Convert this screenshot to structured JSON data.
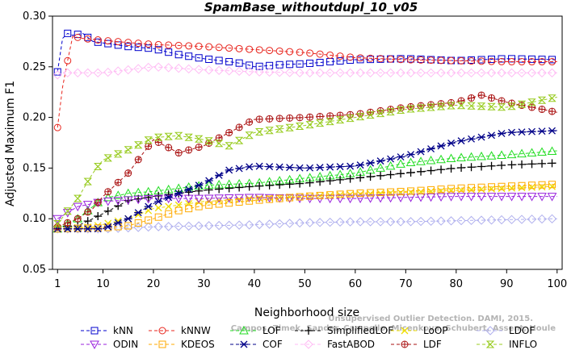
{
  "chart_data": {
    "type": "line",
    "title": "SpamBase_withoutdupl_10_v05",
    "xlabel": "Neighborhood size",
    "ylabel": "Adjusted Maximum F1",
    "xlim": [
      0,
      101
    ],
    "ylim": [
      0.05,
      0.3
    ],
    "x_ticks": [
      1,
      10,
      20,
      30,
      40,
      50,
      60,
      70,
      80,
      90,
      100
    ],
    "y_ticks": [
      "0.05",
      "0.10",
      "0.15",
      "0.20",
      "0.25",
      "0.30"
    ],
    "grid": false,
    "legend_position": "bottom",
    "credit": "Campos, Zimek, Sander, Campello, Micenkova, Schubert, Assent, Houle",
    "credit_line2": "Unsupervised Outlier Detection. DAMI, 2015.",
    "series": [
      {
        "name": "kNN",
        "color": "#0000cc",
        "marker": "square",
        "keypoints": [
          [
            1,
            0.245
          ],
          [
            2,
            0.278
          ],
          [
            3,
            0.283
          ],
          [
            4,
            0.281
          ],
          [
            6,
            0.283
          ],
          [
            8,
            0.275
          ],
          [
            15,
            0.27
          ],
          [
            20,
            0.268
          ],
          [
            25,
            0.262
          ],
          [
            30,
            0.258
          ],
          [
            35,
            0.255
          ],
          [
            38,
            0.253
          ],
          [
            40,
            0.25
          ],
          [
            45,
            0.252
          ],
          [
            50,
            0.253
          ],
          [
            55,
            0.255
          ],
          [
            60,
            0.257
          ],
          [
            70,
            0.258
          ],
          [
            80,
            0.256
          ],
          [
            90,
            0.258
          ],
          [
            100,
            0.257
          ]
        ]
      },
      {
        "name": "kNNW",
        "color": "#e8241c",
        "marker": "circle",
        "keypoints": [
          [
            1,
            0.19
          ],
          [
            2,
            0.23
          ],
          [
            3,
            0.256
          ],
          [
            4,
            0.28
          ],
          [
            6,
            0.278
          ],
          [
            10,
            0.276
          ],
          [
            20,
            0.272
          ],
          [
            30,
            0.27
          ],
          [
            40,
            0.267
          ],
          [
            50,
            0.264
          ],
          [
            60,
            0.259
          ],
          [
            70,
            0.257
          ],
          [
            80,
            0.256
          ],
          [
            90,
            0.255
          ],
          [
            100,
            0.255
          ]
        ]
      },
      {
        "name": "LOF",
        "color": "#22dd22",
        "marker": "triangle-up",
        "keypoints": [
          [
            1,
            0.09
          ],
          [
            5,
            0.1
          ],
          [
            10,
            0.12
          ],
          [
            15,
            0.125
          ],
          [
            20,
            0.127
          ],
          [
            30,
            0.133
          ],
          [
            40,
            0.135
          ],
          [
            50,
            0.14
          ],
          [
            60,
            0.145
          ],
          [
            70,
            0.155
          ],
          [
            80,
            0.16
          ],
          [
            90,
            0.163
          ],
          [
            100,
            0.167
          ]
        ]
      },
      {
        "name": "SimplifiedLOF",
        "color": "#000000",
        "marker": "plus",
        "keypoints": [
          [
            1,
            0.092
          ],
          [
            5,
            0.093
          ],
          [
            8,
            0.1
          ],
          [
            12,
            0.11
          ],
          [
            15,
            0.118
          ],
          [
            20,
            0.122
          ],
          [
            30,
            0.128
          ],
          [
            40,
            0.132
          ],
          [
            50,
            0.135
          ],
          [
            60,
            0.14
          ],
          [
            70,
            0.145
          ],
          [
            80,
            0.15
          ],
          [
            90,
            0.153
          ],
          [
            100,
            0.155
          ]
        ]
      },
      {
        "name": "LoOP",
        "color": "#eedd00",
        "marker": "cross",
        "keypoints": [
          [
            1,
            0.09
          ],
          [
            8,
            0.092
          ],
          [
            15,
            0.1
          ],
          [
            20,
            0.11
          ],
          [
            30,
            0.117
          ],
          [
            40,
            0.12
          ],
          [
            50,
            0.122
          ],
          [
            60,
            0.124
          ],
          [
            70,
            0.126
          ],
          [
            80,
            0.128
          ],
          [
            90,
            0.13
          ],
          [
            100,
            0.132
          ]
        ]
      },
      {
        "name": "LDOF",
        "color": "#b0b0ee",
        "marker": "diamond",
        "keypoints": [
          [
            1,
            0.09
          ],
          [
            10,
            0.09
          ],
          [
            20,
            0.092
          ],
          [
            30,
            0.093
          ],
          [
            40,
            0.094
          ],
          [
            50,
            0.096
          ],
          [
            60,
            0.097
          ],
          [
            70,
            0.097
          ],
          [
            80,
            0.098
          ],
          [
            90,
            0.099
          ],
          [
            100,
            0.1
          ]
        ]
      },
      {
        "name": "ODIN",
        "color": "#9922dd",
        "marker": "triangle-down",
        "keypoints": [
          [
            1,
            0.1
          ],
          [
            5,
            0.112
          ],
          [
            10,
            0.117
          ],
          [
            20,
            0.12
          ],
          [
            30,
            0.12
          ],
          [
            40,
            0.121
          ],
          [
            50,
            0.12
          ],
          [
            60,
            0.12
          ],
          [
            70,
            0.121
          ],
          [
            80,
            0.122
          ],
          [
            90,
            0.122
          ],
          [
            100,
            0.122
          ]
        ]
      },
      {
        "name": "KDEOS",
        "color": "#ffaa00",
        "marker": "square",
        "keypoints": [
          [
            1,
            0.09
          ],
          [
            10,
            0.091
          ],
          [
            15,
            0.093
          ],
          [
            20,
            0.1
          ],
          [
            25,
            0.108
          ],
          [
            30,
            0.113
          ],
          [
            40,
            0.118
          ],
          [
            50,
            0.122
          ],
          [
            60,
            0.125
          ],
          [
            70,
            0.127
          ],
          [
            80,
            0.13
          ],
          [
            90,
            0.132
          ],
          [
            100,
            0.134
          ]
        ]
      },
      {
        "name": "COF",
        "color": "#000088",
        "marker": "asterisk",
        "keypoints": [
          [
            1,
            0.09
          ],
          [
            10,
            0.09
          ],
          [
            15,
            0.1
          ],
          [
            20,
            0.115
          ],
          [
            30,
            0.135
          ],
          [
            35,
            0.148
          ],
          [
            40,
            0.152
          ],
          [
            50,
            0.15
          ],
          [
            60,
            0.152
          ],
          [
            70,
            0.162
          ],
          [
            80,
            0.176
          ],
          [
            90,
            0.185
          ],
          [
            100,
            0.187
          ]
        ]
      },
      {
        "name": "FastABOD",
        "color": "#ffbbf4",
        "marker": "diamond",
        "keypoints": [
          [
            1,
            0.242
          ],
          [
            2,
            0.244
          ],
          [
            5,
            0.244
          ],
          [
            10,
            0.244
          ],
          [
            20,
            0.25
          ],
          [
            30,
            0.247
          ],
          [
            40,
            0.245
          ],
          [
            50,
            0.244
          ],
          [
            60,
            0.244
          ],
          [
            70,
            0.244
          ],
          [
            80,
            0.244
          ],
          [
            90,
            0.244
          ],
          [
            100,
            0.244
          ]
        ]
      },
      {
        "name": "LDF",
        "color": "#aa1111",
        "marker": "circle-plus",
        "keypoints": [
          [
            1,
            0.092
          ],
          [
            5,
            0.1
          ],
          [
            8,
            0.11
          ],
          [
            10,
            0.122
          ],
          [
            15,
            0.145
          ],
          [
            18,
            0.165
          ],
          [
            20,
            0.178
          ],
          [
            25,
            0.165
          ],
          [
            30,
            0.172
          ],
          [
            35,
            0.185
          ],
          [
            40,
            0.198
          ],
          [
            50,
            0.2
          ],
          [
            60,
            0.203
          ],
          [
            70,
            0.21
          ],
          [
            80,
            0.215
          ],
          [
            85,
            0.222
          ],
          [
            90,
            0.215
          ],
          [
            100,
            0.205
          ]
        ]
      },
      {
        "name": "INFLO",
        "color": "#99cc22",
        "marker": "hourglass",
        "keypoints": [
          [
            1,
            0.095
          ],
          [
            5,
            0.12
          ],
          [
            8,
            0.145
          ],
          [
            10,
            0.158
          ],
          [
            15,
            0.168
          ],
          [
            20,
            0.18
          ],
          [
            25,
            0.182
          ],
          [
            30,
            0.178
          ],
          [
            35,
            0.172
          ],
          [
            40,
            0.185
          ],
          [
            50,
            0.192
          ],
          [
            60,
            0.2
          ],
          [
            70,
            0.208
          ],
          [
            80,
            0.212
          ],
          [
            90,
            0.21
          ],
          [
            100,
            0.22
          ]
        ]
      }
    ]
  }
}
